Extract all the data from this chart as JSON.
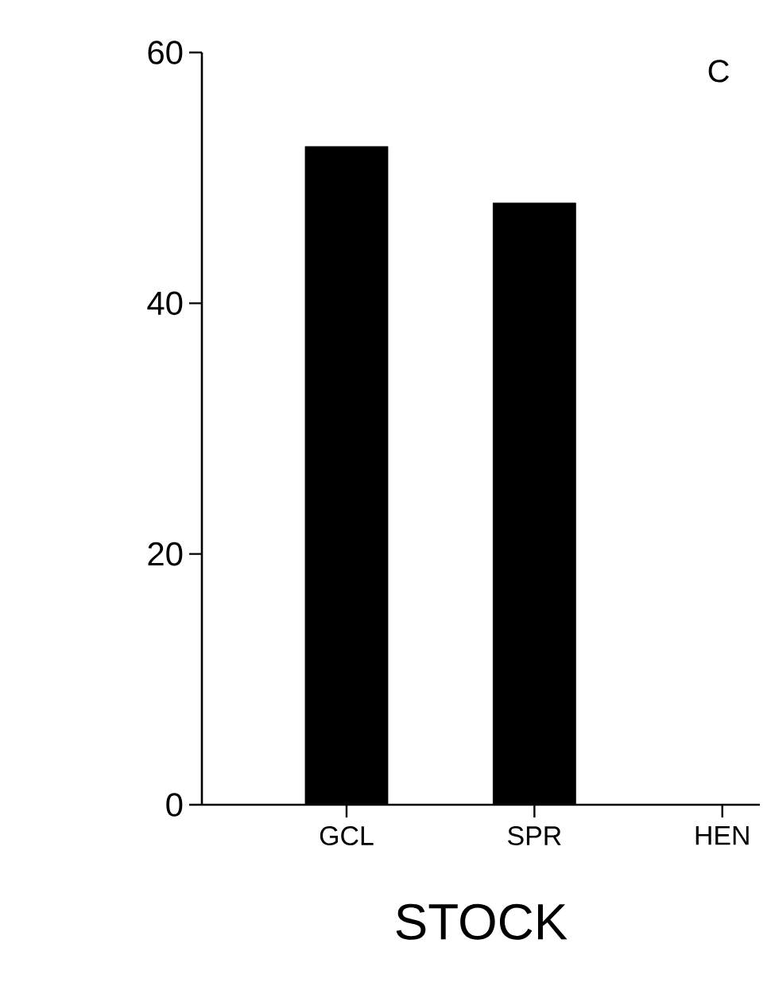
{
  "chart_data": {
    "type": "bar",
    "title": "C",
    "xlabel": "STOCK",
    "categories": [
      "GCL",
      "SPR",
      "HEN"
    ],
    "values": [
      52.5,
      48,
      0
    ],
    "color": "#000000",
    "ylim": [
      0,
      60
    ],
    "yticks": [
      0,
      20,
      40,
      60
    ],
    "grid": false
  }
}
